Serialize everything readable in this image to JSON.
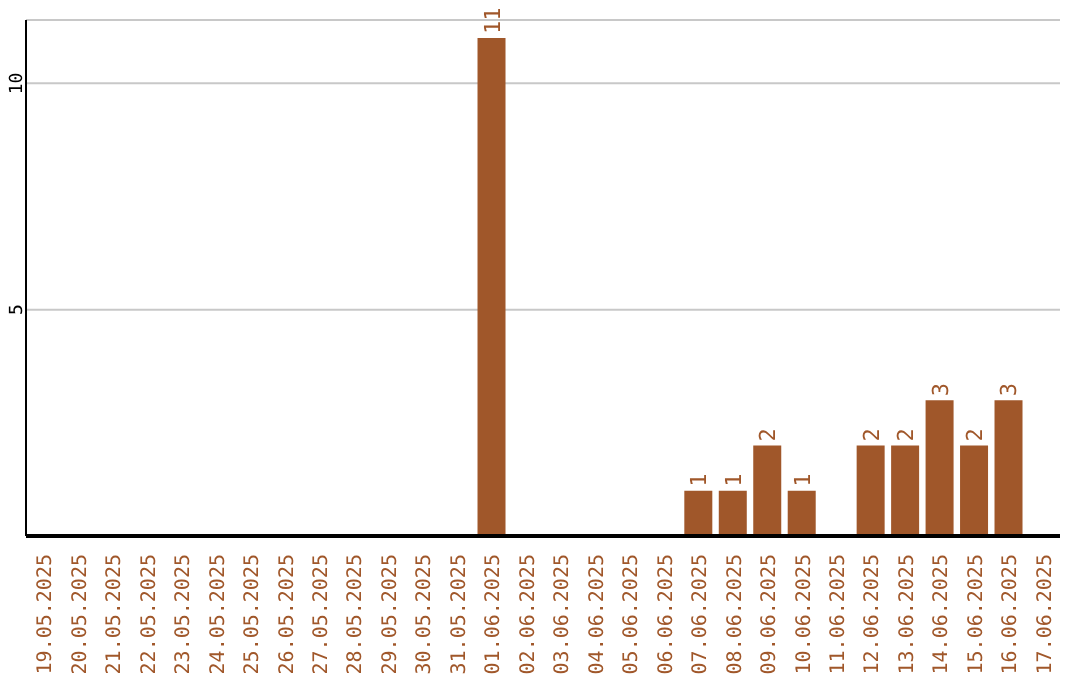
{
  "chart_data": {
    "type": "bar",
    "categories": [
      "19.05.2025",
      "20.05.2025",
      "21.05.2025",
      "22.05.2025",
      "23.05.2025",
      "24.05.2025",
      "25.05.2025",
      "26.05.2025",
      "27.05.2025",
      "28.05.2025",
      "29.05.2025",
      "30.05.2025",
      "31.05.2025",
      "01.06.2025",
      "02.06.2025",
      "03.06.2025",
      "04.06.2025",
      "05.06.2025",
      "06.06.2025",
      "07.06.2025",
      "08.06.2025",
      "09.06.2025",
      "10.06.2025",
      "11.06.2025",
      "12.06.2025",
      "13.06.2025",
      "14.06.2025",
      "15.06.2025",
      "16.06.2025",
      "17.06.2025"
    ],
    "values": [
      0,
      0,
      0,
      0,
      0,
      0,
      0,
      0,
      0,
      0,
      0,
      0,
      0,
      11,
      0,
      0,
      0,
      0,
      0,
      1,
      1,
      2,
      1,
      0,
      2,
      2,
      3,
      2,
      3,
      0
    ],
    "value_labels": [
      null,
      null,
      null,
      null,
      null,
      null,
      null,
      null,
      null,
      null,
      null,
      null,
      null,
      "11",
      null,
      null,
      null,
      null,
      null,
      "1",
      "1",
      "2",
      "1",
      null,
      "2",
      "2",
      "3",
      "2",
      "3",
      null
    ],
    "color": "#a0572a",
    "ylim": [
      0,
      11.4
    ],
    "yticks": [
      5,
      10
    ],
    "grid": "y"
  }
}
